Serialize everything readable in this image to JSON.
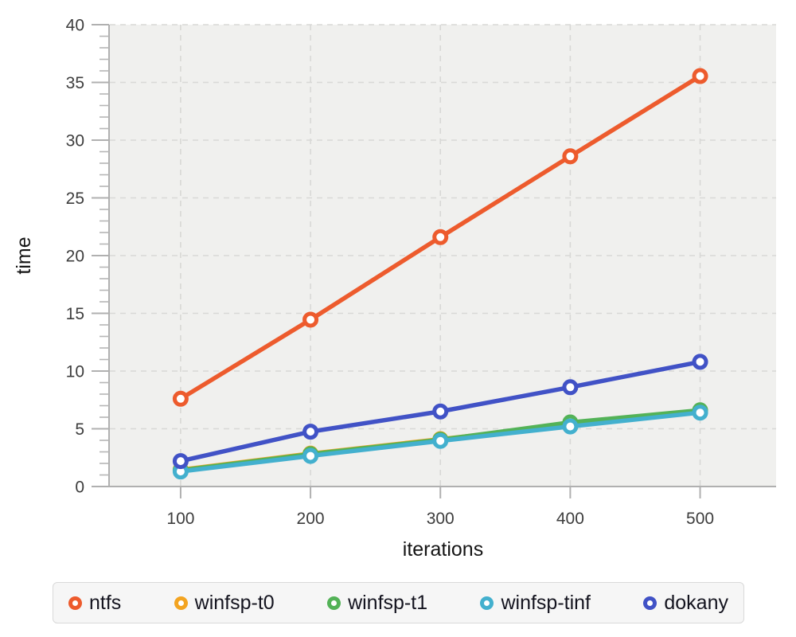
{
  "chart_data": {
    "type": "line",
    "title": "",
    "xlabel": "iterations",
    "ylabel": "time",
    "x": [
      100,
      200,
      300,
      400,
      500
    ],
    "series": [
      {
        "name": "ntfs",
        "color": "#ED5B2D",
        "values": [
          7.6,
          14.45,
          21.6,
          28.6,
          35.55
        ]
      },
      {
        "name": "winfsp-t0",
        "color": "#F3A421",
        "values": [
          1.45,
          2.85,
          4.1,
          5.35,
          6.5
        ]
      },
      {
        "name": "winfsp-t1",
        "color": "#53B257",
        "values": [
          1.4,
          2.8,
          4.05,
          5.55,
          6.6
        ]
      },
      {
        "name": "winfsp-tinf",
        "color": "#43B0CE",
        "values": [
          1.3,
          2.65,
          3.95,
          5.2,
          6.4
        ]
      },
      {
        "name": "dokany",
        "color": "#4152C6",
        "values": [
          2.2,
          4.75,
          6.5,
          8.6,
          10.8
        ]
      }
    ],
    "xticks": [
      100,
      200,
      300,
      400,
      500
    ],
    "yticks": [
      0,
      5,
      10,
      15,
      20,
      25,
      30,
      35,
      40
    ],
    "y_minor_step": 1,
    "ylim": [
      0,
      40
    ],
    "grid": "dashed",
    "legend_position": "bottom",
    "marker": "open-circle",
    "style": {
      "plot_bg": "#f0f0ee",
      "grid_color": "#d8d8d6",
      "axis_color": "#b0b0b0",
      "tick_label_color": "#3d3d3d",
      "axis_title_color": "#141414",
      "legend_bg": "#f6f6f6",
      "legend_border": "#d9d9d9"
    }
  }
}
